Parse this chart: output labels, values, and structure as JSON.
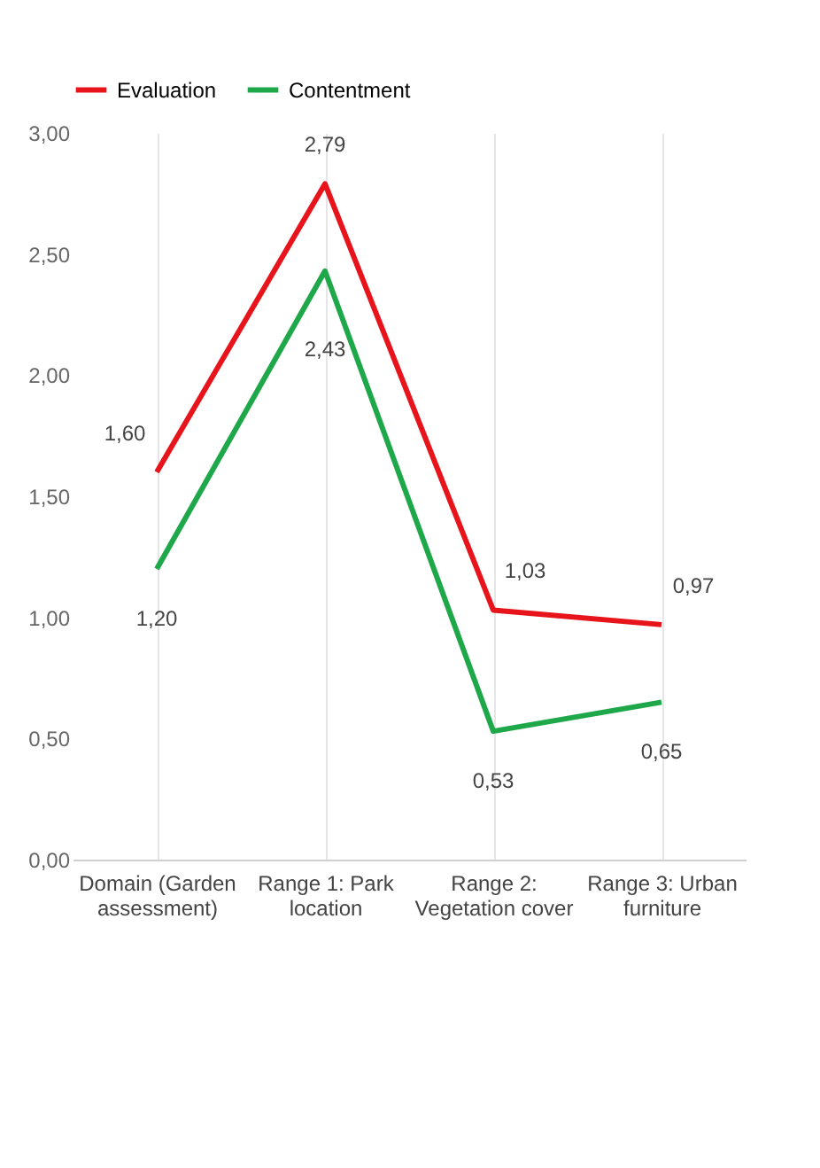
{
  "chart_data": {
    "type": "line",
    "categories": [
      "Domain (Garden assessment)",
      "Range 1: Park location",
      "Range 2: Vegetation cover",
      "Range 3: Urban furniture"
    ],
    "series": [
      {
        "name": "Evaluation",
        "color": "#e8141c",
        "values": [
          1.6,
          2.79,
          1.03,
          0.97
        ],
        "value_labels": [
          "1,60",
          "2,79",
          "1,03",
          "0,97"
        ]
      },
      {
        "name": "Contentment",
        "color": "#1fa84a",
        "values": [
          1.2,
          2.43,
          0.53,
          0.65
        ],
        "value_labels": [
          "1,20",
          "2,43",
          "0,53",
          "0,65"
        ]
      }
    ],
    "ylim": [
      0,
      3
    ],
    "yticks": [
      {
        "value": 0,
        "label": "0,00"
      },
      {
        "value": 0.5,
        "label": "0,50"
      },
      {
        "value": 1,
        "label": "1,00"
      },
      {
        "value": 1.5,
        "label": "1,50"
      },
      {
        "value": 2,
        "label": "2,00"
      },
      {
        "value": 2.5,
        "label": "2,50"
      },
      {
        "value": 3,
        "label": "3,00"
      }
    ],
    "grid": "x",
    "legend": "top",
    "marker": "none",
    "line_style": "solid"
  }
}
